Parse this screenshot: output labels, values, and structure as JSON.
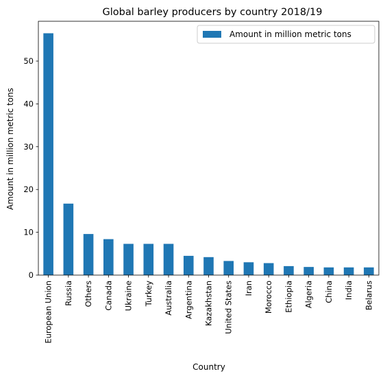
{
  "chart_data": {
    "type": "bar",
    "title": "Global barley producers by country 2018/19",
    "xlabel": "Country",
    "ylabel": "Amount in million metric tons",
    "categories": [
      "European Union",
      "Russia",
      "Others",
      "Canada",
      "Ukraine",
      "Turkey",
      "Australia",
      "Argentina",
      "Kazakhstan",
      "United States",
      "Iran",
      "Morocco",
      "Ethiopia",
      "Algeria",
      "China",
      "India",
      "Belarus"
    ],
    "series": [
      {
        "name": "Amount in million metric tons",
        "values": [
          56.5,
          16.7,
          9.6,
          8.4,
          7.3,
          7.3,
          7.3,
          4.5,
          4.2,
          3.3,
          3.0,
          2.8,
          2.1,
          1.9,
          1.8,
          1.8,
          1.8
        ]
      }
    ],
    "ylim": [
      0,
      59.3
    ],
    "yticks": [
      0,
      10,
      20,
      30,
      40,
      50
    ],
    "legend_position": "top-right",
    "grid": false,
    "bar_color": "#1f77b4"
  }
}
